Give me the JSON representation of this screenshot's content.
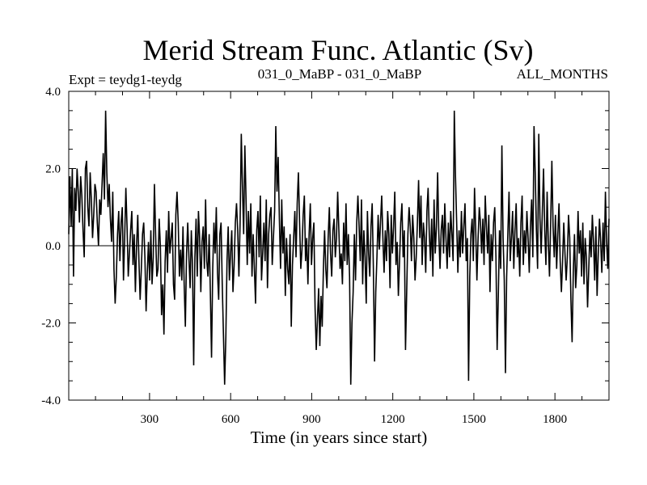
{
  "chart_data": {
    "type": "line",
    "title": "Merid Stream Func. Atlantic (Sv)",
    "subtitle_left": "Expt = teydg1-teydg",
    "subtitle_center": "031_0_MaBP - 031_0_MaBP",
    "subtitle_right": "ALL_MONTHS",
    "xlabel": "Time (in years since start)",
    "ylabel": "",
    "xlim": [
      1,
      2000
    ],
    "ylim": [
      -4.0,
      4.0
    ],
    "xticks": [
      300,
      600,
      900,
      1200,
      1500,
      1800
    ],
    "xtick_labels": [
      "300",
      "600",
      "900",
      "1200",
      "1500",
      "1800"
    ],
    "yticks": [
      4.0,
      2.0,
      0.0,
      -2.0,
      -4.0
    ],
    "ytick_labels": [
      "4.0",
      "2.0",
      "0.0",
      "-2.0",
      "-4.0"
    ],
    "zero_line": true,
    "grid": false,
    "line_color": "#000000",
    "series": [
      {
        "values": [
          0.3,
          1.8,
          0.5,
          2.0,
          -0.8,
          1.5,
          0.9,
          2.0,
          1.4,
          0.6,
          1.8,
          1.3,
          0.4,
          -0.3,
          2.0,
          2.2,
          1.0,
          0.5,
          1.9,
          1.2,
          0.2,
          0.8,
          1.6,
          1.4,
          0.6,
          0.0,
          1.2,
          0.8,
          1.6,
          2.4,
          1.2,
          3.5,
          1.9,
          1.0,
          1.6,
          0.7,
          0.1,
          1.4,
          -0.6,
          -1.5,
          -0.8,
          0.3,
          0.9,
          -0.4,
          0.6,
          1.0,
          -0.9,
          0.2,
          1.5,
          0.5,
          -0.8,
          -0.2,
          0.4,
          0.9,
          -0.5,
          0.3,
          -1.2,
          0.0,
          0.8,
          -0.4,
          -1.4,
          -0.6,
          0.3,
          0.6,
          -0.3,
          -1.7,
          -0.7,
          0.1,
          -0.9,
          0.4,
          -1.0,
          -0.3,
          1.6,
          0.3,
          -0.8,
          -0.6,
          0.7,
          0.0,
          -1.8,
          -1.0,
          -2.3,
          -0.4,
          0.4,
          -0.7,
          0.9,
          -0.2,
          0.2,
          0.6,
          -1.0,
          -1.4,
          0.8,
          1.4,
          0.6,
          -0.8,
          -0.1,
          -0.9,
          0.5,
          -1.0,
          -2.1,
          -0.2,
          0.6,
          -0.3,
          -1.1,
          0.4,
          -0.5,
          -3.1,
          -0.3,
          0.7,
          -0.8,
          0.9,
          0.2,
          -1.2,
          0.1,
          0.5,
          -0.6,
          1.2,
          -0.4,
          -0.8,
          0.3,
          -1.2,
          -2.9,
          -0.6,
          0.6,
          -0.2,
          1.0,
          -0.7,
          -1.4,
          0.3,
          0.6,
          -1.0,
          -2.3,
          -3.6,
          -2.4,
          -0.4,
          0.5,
          -0.9,
          -0.2,
          0.4,
          -1.2,
          -0.5,
          0.6,
          1.1,
          0.4,
          -0.8,
          0.6,
          2.9,
          1.5,
          0.3,
          2.6,
          1.2,
          -0.5,
          0.9,
          -0.2,
          1.1,
          -0.8,
          0.3,
          -0.6,
          -1.5,
          0.4,
          0.9,
          -0.3,
          1.3,
          -0.9,
          -0.2,
          0.6,
          -0.4,
          1.2,
          -1.1,
          0.3,
          0.8,
          1.0,
          -0.5,
          0.2,
          0.9,
          3.1,
          1.4,
          2.3,
          0.7,
          -0.6,
          1.2,
          -0.2,
          0.5,
          -1.3,
          0.2,
          -0.6,
          -1.0,
          0.3,
          -2.1,
          -0.5,
          0.2,
          0.9,
          -0.3,
          1.1,
          1.9,
          0.6,
          -0.6,
          -0.1,
          0.8,
          1.3,
          -0.4,
          0.2,
          -1.0,
          0.3,
          1.1,
          -0.5,
          0.2,
          0.6,
          -1.6,
          -2.7,
          -1.9,
          -1.1,
          -2.6,
          -1.3,
          -2.1,
          -0.6,
          0.4,
          -0.6,
          -1.1,
          0.2,
          1.0,
          -0.2,
          -0.8,
          0.4,
          0.7,
          -0.3,
          0.2,
          1.4,
          0.4,
          -0.6,
          -0.2,
          -1.0,
          0.6,
          -0.4,
          1.1,
          -0.5,
          0.3,
          -0.8,
          -3.6,
          -2.0,
          -1.2,
          0.3,
          -0.9,
          0.6,
          1.3,
          0.5,
          -0.4,
          1.2,
          -1.0,
          0.4,
          -0.3,
          -1.5,
          0.9,
          -0.2,
          -0.8,
          0.5,
          1.1,
          -0.6,
          -3.0,
          -1.2,
          -0.3,
          0.8,
          -0.1,
          0.6,
          1.3,
          0.2,
          -0.7,
          0.4,
          -0.4,
          0.9,
          0.3,
          -1.1,
          0.8,
          -0.2,
          0.5,
          1.4,
          -0.5,
          0.1,
          -1.3,
          -0.4,
          0.6,
          1.1,
          -0.3,
          0.4,
          -2.7,
          -1.2,
          0.3,
          1.0,
          0.5,
          -0.4,
          0.8,
          0.2,
          -0.9,
          -0.3,
          0.6,
          1.7,
          0.2,
          1.3,
          -0.5,
          0.6,
          0.2,
          -0.7,
          0.9,
          1.5,
          0.3,
          -0.4,
          0.7,
          -0.8,
          1.2,
          -0.2,
          0.5,
          1.9,
          0.3,
          -0.6,
          0.4,
          0.8,
          -0.2,
          1.1,
          0.2,
          -0.6,
          0.6,
          -0.3,
          0.9,
          0.3,
          -0.4,
          3.5,
          1.8,
          0.6,
          -0.7,
          0.4,
          -0.3,
          0.9,
          -0.2,
          0.5,
          1.1,
          -0.4,
          0.2,
          -3.5,
          -0.8,
          0.3,
          0.7,
          -0.4,
          1.5,
          0.4,
          -0.9,
          0.2,
          1.0,
          0.6,
          -0.2,
          0.7,
          -0.5,
          1.3,
          0.5,
          -0.2,
          0.8,
          -1.2,
          0.3,
          -0.4,
          0.6,
          1.0,
          -0.3,
          -2.7,
          -1.3,
          0.4,
          -0.6,
          2.6,
          0.2,
          -0.9,
          -3.3,
          -0.8,
          0.3,
          1.4,
          -0.4,
          0.2,
          0.9,
          -0.6,
          0.4,
          1.1,
          -0.3,
          0.2,
          -0.8,
          0.6,
          1.3,
          -0.5,
          0.4,
          -0.2,
          0.9,
          0.2,
          -0.7,
          0.5,
          1.2,
          -0.3,
          3.1,
          1.9,
          0.4,
          -0.6,
          2.9,
          0.7,
          -0.2,
          0.9,
          2.0,
          0.4,
          -0.5,
          1.4,
          0.1,
          -0.8,
          0.6,
          2.2,
          0.5,
          -0.3,
          0.8,
          -0.6,
          0.3,
          1.1,
          -0.4,
          -1.2,
          -0.4,
          0.6,
          -0.2,
          -0.9,
          -0.3,
          0.8,
          0.2,
          -1.4,
          -2.5,
          -0.7,
          0.3,
          -1.1,
          -0.5,
          0.9,
          -0.2,
          0.4,
          -0.8,
          0.6,
          -1.0,
          0.2,
          -0.3,
          -1.6,
          -0.6,
          0.4,
          -0.3,
          0.8,
          0.1,
          -0.9,
          0.5,
          -1.3,
          -0.2,
          0.7,
          0.1,
          -0.7,
          0.6,
          -0.4,
          1.4,
          0.1,
          -0.6,
          0.7
        ]
      }
    ]
  }
}
